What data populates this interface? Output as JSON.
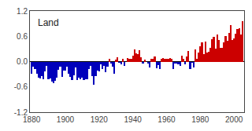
{
  "chart_data": {
    "type": "bar",
    "title": "Land",
    "x": [
      1880,
      1881,
      1882,
      1883,
      1884,
      1885,
      1886,
      1887,
      1888,
      1889,
      1890,
      1891,
      1892,
      1893,
      1894,
      1895,
      1896,
      1897,
      1898,
      1899,
      1900,
      1901,
      1902,
      1903,
      1904,
      1905,
      1906,
      1907,
      1908,
      1909,
      1910,
      1911,
      1912,
      1913,
      1914,
      1915,
      1916,
      1917,
      1918,
      1919,
      1920,
      1921,
      1922,
      1923,
      1924,
      1925,
      1926,
      1927,
      1928,
      1929,
      1930,
      1931,
      1932,
      1933,
      1934,
      1935,
      1936,
      1937,
      1938,
      1939,
      1940,
      1941,
      1942,
      1943,
      1944,
      1945,
      1946,
      1947,
      1948,
      1949,
      1950,
      1951,
      1952,
      1953,
      1954,
      1955,
      1956,
      1957,
      1958,
      1959,
      1960,
      1961,
      1962,
      1963,
      1964,
      1965,
      1966,
      1967,
      1968,
      1969,
      1970,
      1971,
      1972,
      1973,
      1974,
      1975,
      1976,
      1977,
      1978,
      1979,
      1980,
      1981,
      1982,
      1983,
      1984,
      1985,
      1986,
      1987,
      1988,
      1989,
      1990,
      1991,
      1992,
      1993,
      1994,
      1995,
      1996,
      1997,
      1998,
      1999,
      2000,
      2001,
      2002,
      2003,
      2004,
      2005
    ],
    "values": [
      -0.28,
      -0.13,
      -0.17,
      -0.29,
      -0.38,
      -0.4,
      -0.35,
      -0.42,
      -0.24,
      -0.1,
      -0.42,
      -0.4,
      -0.47,
      -0.51,
      -0.45,
      -0.38,
      -0.2,
      -0.13,
      -0.36,
      -0.21,
      -0.22,
      -0.13,
      -0.28,
      -0.36,
      -0.44,
      -0.32,
      -0.14,
      -0.44,
      -0.39,
      -0.41,
      -0.39,
      -0.44,
      -0.42,
      -0.42,
      -0.18,
      -0.1,
      -0.35,
      -0.55,
      -0.35,
      -0.22,
      -0.23,
      -0.06,
      -0.17,
      -0.11,
      -0.26,
      -0.12,
      0.07,
      -0.04,
      -0.13,
      -0.28,
      0.04,
      0.1,
      -0.02,
      -0.06,
      0.07,
      -0.1,
      -0.01,
      0.09,
      0.07,
      0.07,
      0.14,
      0.28,
      0.2,
      0.18,
      0.27,
      0.11,
      -0.05,
      0.04,
      -0.01,
      -0.05,
      -0.14,
      0.06,
      0.06,
      0.12,
      -0.16,
      -0.09,
      -0.17,
      0.07,
      0.09,
      0.06,
      0.06,
      0.07,
      0.09,
      0.07,
      -0.17,
      -0.05,
      -0.04,
      -0.06,
      -0.11,
      0.14,
      0.07,
      -0.07,
      0.12,
      0.25,
      -0.18,
      -0.02,
      -0.14,
      0.28,
      0.06,
      0.21,
      0.36,
      0.46,
      0.18,
      0.47,
      0.22,
      0.23,
      0.32,
      0.53,
      0.58,
      0.3,
      0.64,
      0.52,
      0.33,
      0.32,
      0.46,
      0.6,
      0.5,
      0.67,
      0.86,
      0.51,
      0.54,
      0.66,
      0.78,
      0.79,
      0.64,
      0.95
    ],
    "colors": [
      "#0000bb",
      "#0000bb",
      "#0000bb",
      "#0000bb",
      "#0000bb",
      "#0000bb",
      "#0000bb",
      "#0000bb",
      "#0000bb",
      "#0000bb",
      "#0000bb",
      "#0000bb",
      "#0000bb",
      "#0000bb",
      "#0000bb",
      "#0000bb",
      "#0000bb",
      "#0000bb",
      "#0000bb",
      "#0000bb",
      "#0000bb",
      "#0000bb",
      "#0000bb",
      "#0000bb",
      "#0000bb",
      "#0000bb",
      "#0000bb",
      "#0000bb",
      "#0000bb",
      "#0000bb",
      "#0000bb",
      "#0000bb",
      "#0000bb",
      "#0000bb",
      "#0000bb",
      "#0000bb",
      "#0000bb",
      "#0000bb",
      "#0000bb",
      "#0000bb",
      "#0000bb",
      "#0000bb",
      "#0000bb",
      "#0000bb",
      "#0000bb",
      "#0000bb",
      "#cc0000",
      "#0000bb",
      "#0000bb",
      "#0000bb",
      "#cc0000",
      "#cc0000",
      "#0000bb",
      "#0000bb",
      "#cc0000",
      "#0000bb",
      "#0000bb",
      "#cc0000",
      "#cc0000",
      "#cc0000",
      "#cc0000",
      "#cc0000",
      "#cc0000",
      "#cc0000",
      "#cc0000",
      "#cc0000",
      "#0000bb",
      "#cc0000",
      "#0000bb",
      "#0000bb",
      "#0000bb",
      "#cc0000",
      "#cc0000",
      "#cc0000",
      "#0000bb",
      "#0000bb",
      "#0000bb",
      "#cc0000",
      "#cc0000",
      "#cc0000",
      "#cc0000",
      "#cc0000",
      "#cc0000",
      "#cc0000",
      "#0000bb",
      "#0000bb",
      "#0000bb",
      "#0000bb",
      "#0000bb",
      "#cc0000",
      "#cc0000",
      "#0000bb",
      "#cc0000",
      "#cc0000",
      "#0000bb",
      "#0000bb",
      "#0000bb",
      "#cc0000",
      "#cc0000",
      "#cc0000",
      "#cc0000",
      "#cc0000",
      "#cc0000",
      "#cc0000",
      "#cc0000",
      "#cc0000",
      "#cc0000",
      "#cc0000",
      "#cc0000",
      "#cc0000",
      "#cc0000",
      "#cc0000",
      "#cc0000",
      "#cc0000",
      "#cc0000",
      "#cc0000",
      "#cc0000",
      "#cc0000",
      "#cc0000",
      "#cc0000",
      "#cc0000",
      "#cc0000",
      "#cc0000",
      "#cc0000",
      "#cc0000",
      "#cc0000"
    ],
    "xlim": [
      1879,
      2006
    ],
    "ylim": [
      -1.2,
      1.2
    ],
    "xticks": [
      1880,
      1900,
      1920,
      1940,
      1960,
      1980,
      2000
    ],
    "yticks": [
      -1.2,
      -0.6,
      {
        "value": 0,
        "label": "0.0"
      },
      0.6,
      1.2
    ],
    "grid": false
  }
}
